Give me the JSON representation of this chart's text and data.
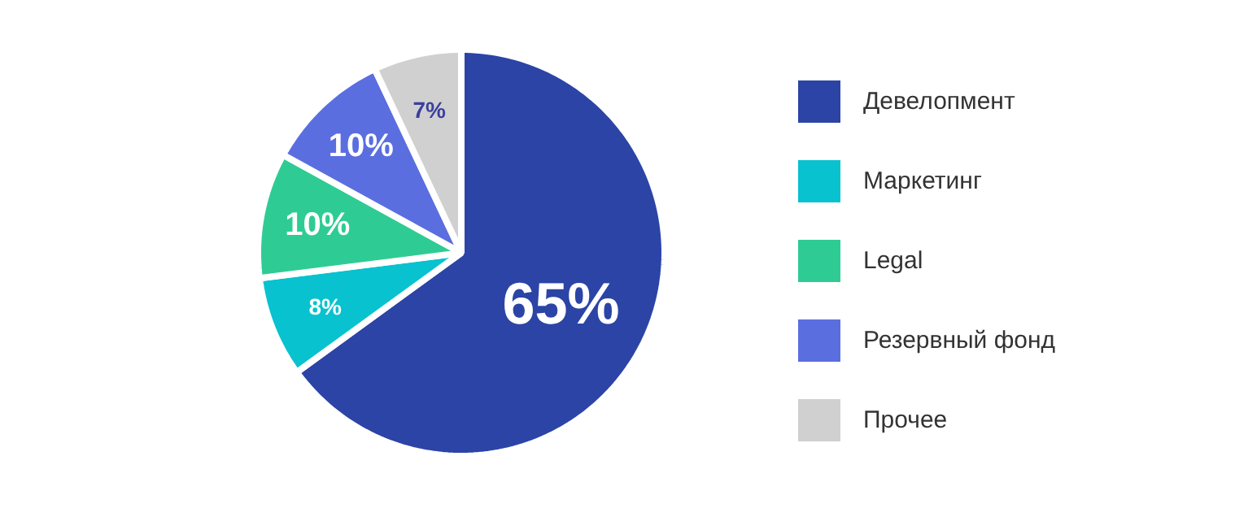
{
  "chart_data": {
    "type": "pie",
    "categories": [
      "Девелопмент",
      "Маркетинг",
      "Legal",
      "Резервный фонд",
      "Прочее"
    ],
    "values": [
      65,
      8,
      10,
      10,
      7
    ],
    "colors": [
      "#2b44a6",
      "#08c2cf",
      "#2ecc94",
      "#5b6ee0",
      "#d0d0d0"
    ],
    "value_labels": [
      "65%",
      "8%",
      "10%",
      "10%",
      "7%"
    ],
    "legend": "right"
  }
}
